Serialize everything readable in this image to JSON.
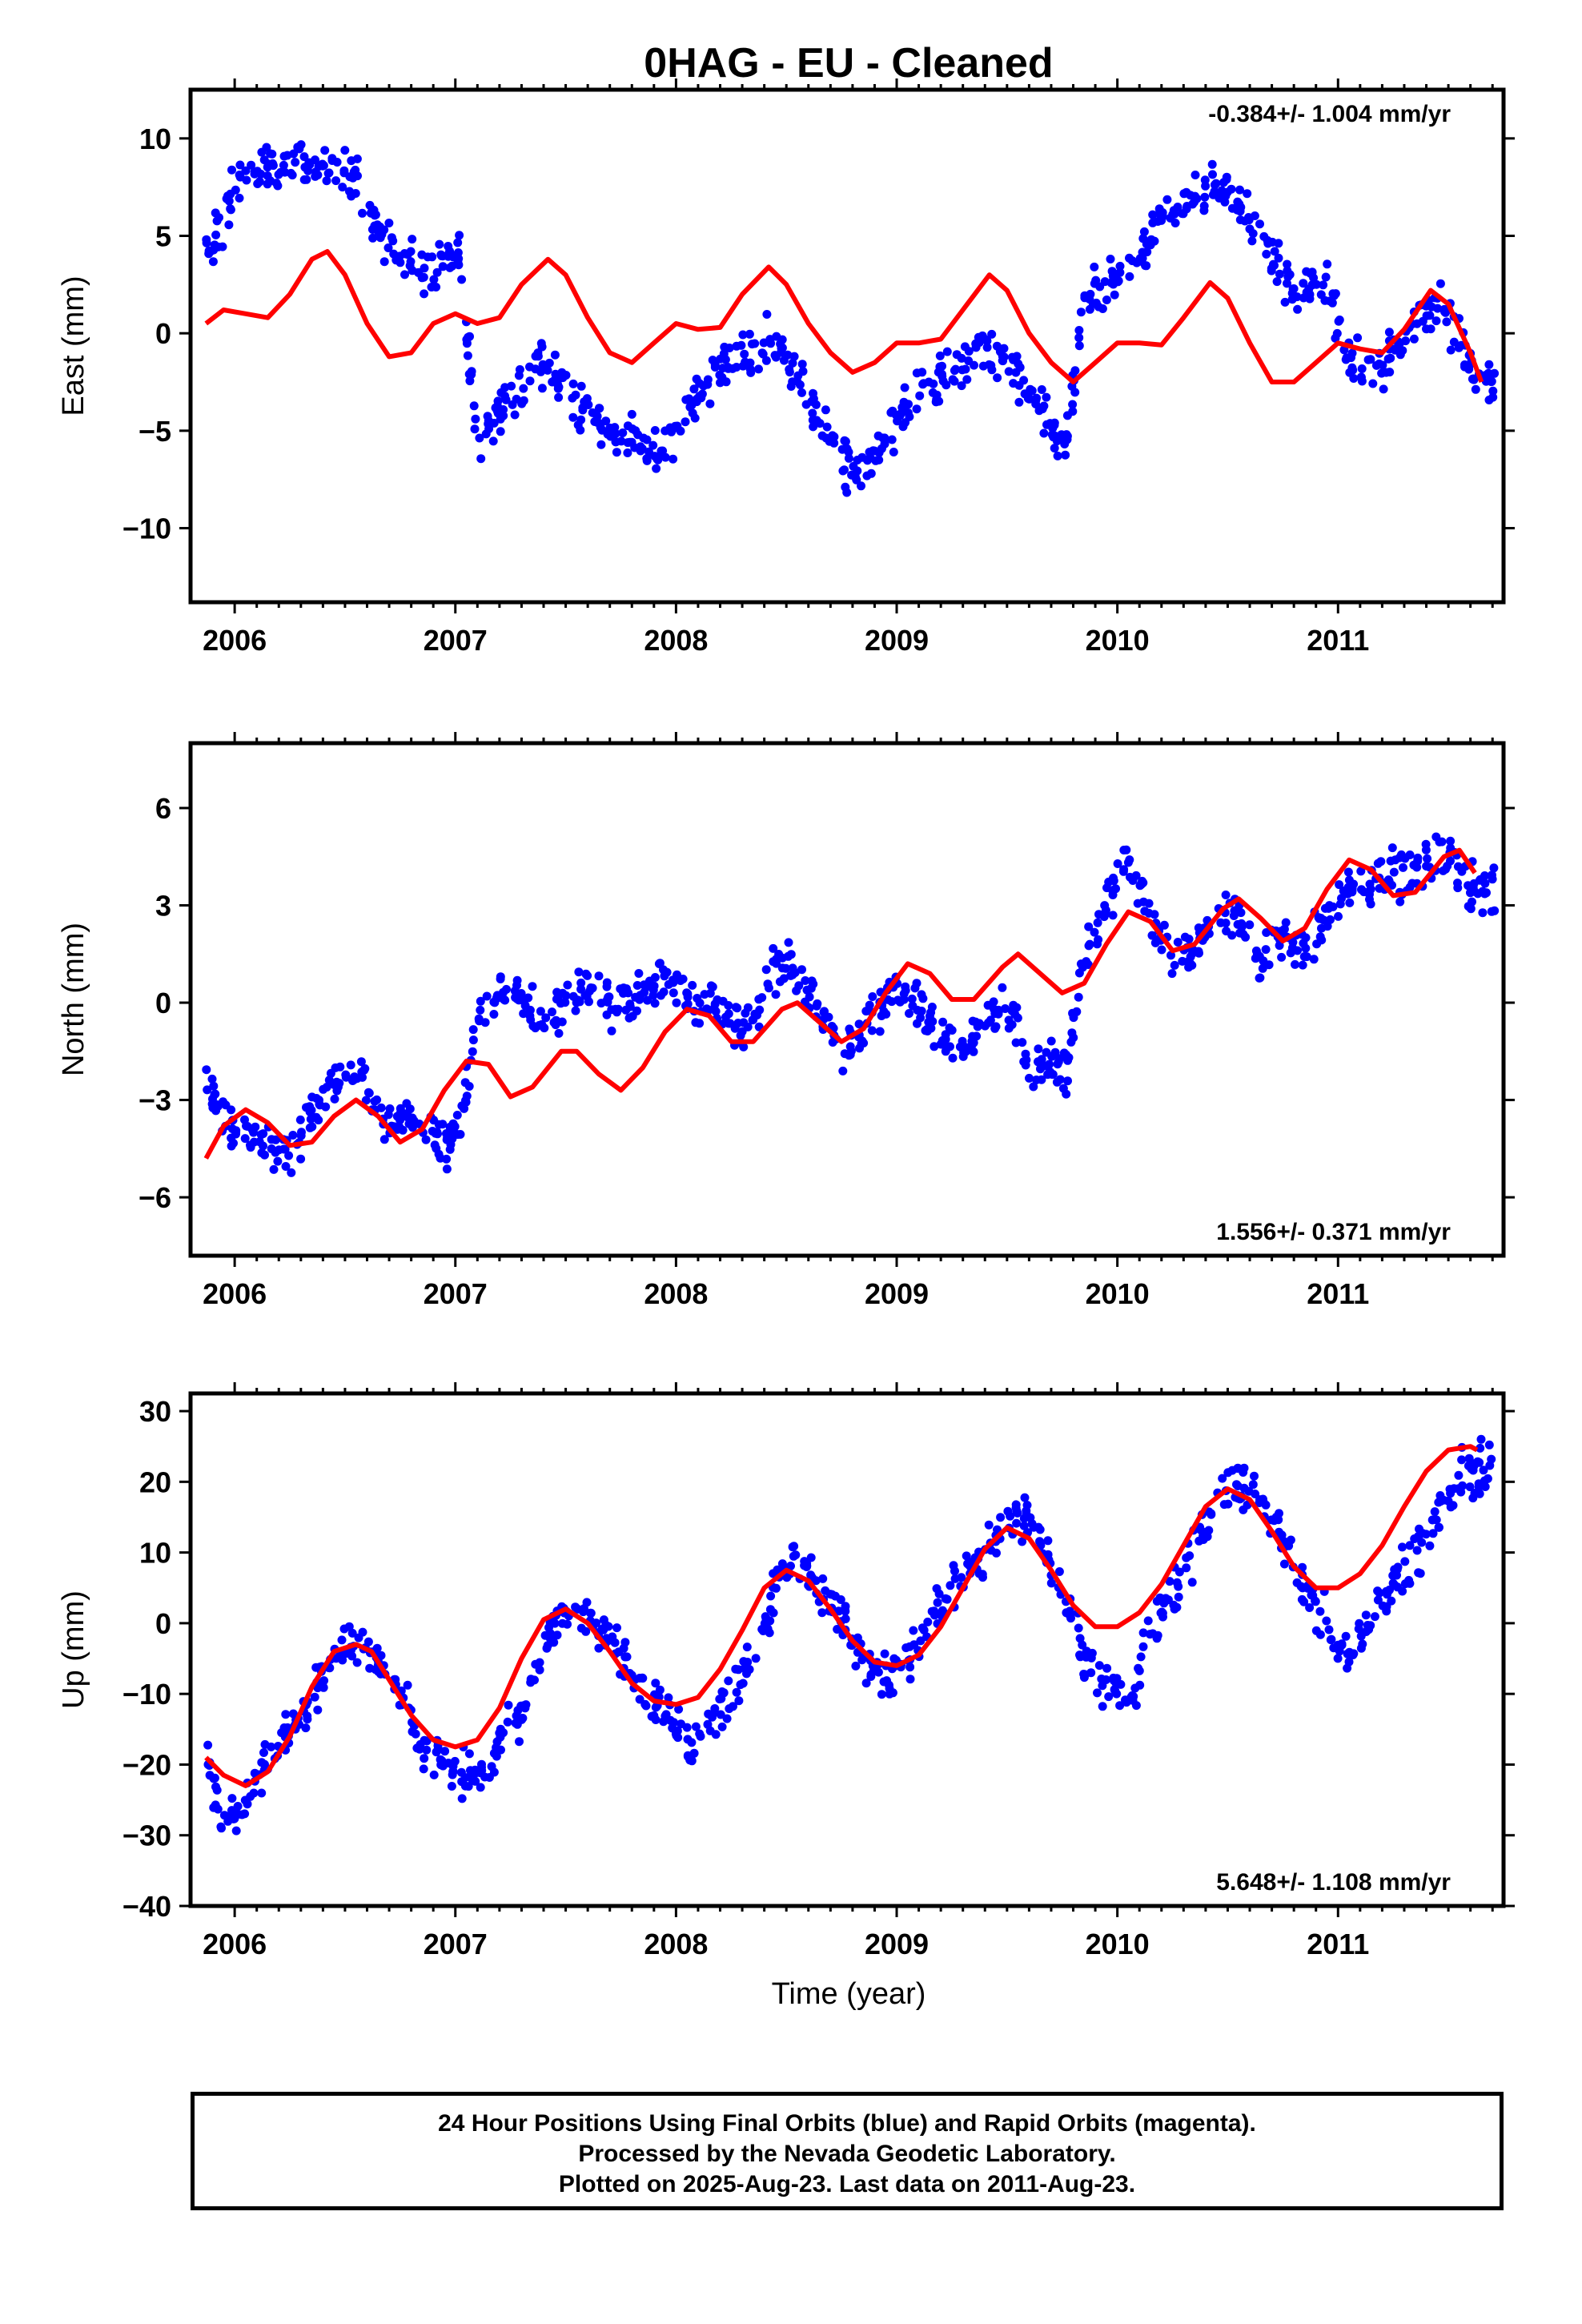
{
  "title": "0HAG  - EU - Cleaned",
  "x_axis_title": "Time (year)",
  "footer": {
    "line1": "24 Hour Positions Using Final Orbits (blue) and Rapid Orbits (magenta).",
    "line2": "Processed by the Nevada Geodetic Laboratory.",
    "line3": "Plotted on 2025-Aug-23. Last data on 2011-Aug-23."
  },
  "colors": {
    "data": "#0000ff",
    "model": "#ff0000",
    "frame": "#000000"
  },
  "chart_data": [
    {
      "type": "scatter",
      "ylabel": "East (mm)",
      "rate_text": "-0.384+/- 1.004 mm/yr",
      "xlim": [
        2005.8,
        2011.75
      ],
      "ylim": [
        -13.8,
        12.5
      ],
      "yticks": [
        -10,
        -5,
        0,
        5,
        10
      ],
      "xticks": [
        2006,
        2007,
        2008,
        2009,
        2010,
        2011
      ],
      "series": [
        {
          "name": "data",
          "x": [
            2005.87,
            2005.95,
            2006.05,
            2006.15,
            2006.25,
            2006.35,
            2006.45,
            2006.55,
            2006.65,
            2006.75,
            2006.85,
            2006.95,
            2007.02,
            2007.1,
            2007.2,
            2007.3,
            2007.4,
            2007.5,
            2007.6,
            2007.7,
            2007.8,
            2007.9,
            2008.0,
            2008.1,
            2008.2,
            2008.3,
            2008.4,
            2008.5,
            2008.6,
            2008.7,
            2008.8,
            2008.9,
            2009.0,
            2009.1,
            2009.2,
            2009.3,
            2009.4,
            2009.5,
            2009.6,
            2009.7,
            2009.77,
            2009.85,
            2009.95,
            2010.05,
            2010.15,
            2010.25,
            2010.35,
            2010.45,
            2010.55,
            2010.65,
            2010.75,
            2010.85,
            2010.95,
            2011.05,
            2011.15,
            2011.25,
            2011.35,
            2011.45,
            2011.55,
            2011.63
          ],
          "y": [
            4.0,
            6.0,
            8.0,
            8.5,
            9.0,
            8.5,
            8.5,
            7.5,
            5.5,
            4.0,
            3.0,
            4.0,
            4.0,
            -5.5,
            -4.0,
            -2.5,
            -1.5,
            -3.0,
            -4.0,
            -5.0,
            -5.5,
            -6.0,
            -5.0,
            -3.0,
            -2.0,
            -1.0,
            -0.5,
            -1.0,
            -3.0,
            -5.5,
            -7.0,
            -6.5,
            -4.5,
            -3.0,
            -2.5,
            -1.5,
            -0.5,
            -1.5,
            -3.0,
            -4.5,
            -5.5,
            2.0,
            2.5,
            3.5,
            5.0,
            6.0,
            7.0,
            7.5,
            6.5,
            5.0,
            3.0,
            2.5,
            2.5,
            -1.5,
            -2.0,
            -1.0,
            0.5,
            1.5,
            0.0,
            -2.5
          ]
        },
        {
          "name": "model",
          "x": [
            2005.87,
            2005.95,
            2006.05,
            2006.15,
            2006.25,
            2006.35,
            2006.42,
            2006.5,
            2006.6,
            2006.7,
            2006.8,
            2006.9,
            2007.0,
            2007.1,
            2007.2,
            2007.3,
            2007.42,
            2007.5,
            2007.6,
            2007.7,
            2007.8,
            2007.9,
            2008.0,
            2008.1,
            2008.2,
            2008.3,
            2008.42,
            2008.5,
            2008.6,
            2008.7,
            2008.8,
            2008.9,
            2009.0,
            2009.1,
            2009.2,
            2009.3,
            2009.42,
            2009.5,
            2009.6,
            2009.7,
            2009.8,
            2009.9,
            2010.0,
            2010.1,
            2010.2,
            2010.3,
            2010.42,
            2010.5,
            2010.6,
            2010.7,
            2010.8,
            2010.9,
            2011.0,
            2011.1,
            2011.2,
            2011.3,
            2011.42,
            2011.5,
            2011.6,
            2011.65
          ],
          "y": [
            0.5,
            1.2,
            1.0,
            0.8,
            2.0,
            3.8,
            4.2,
            3.0,
            0.5,
            -1.2,
            -1.0,
            0.5,
            1.0,
            0.5,
            0.8,
            2.5,
            3.8,
            3.0,
            0.8,
            -1.0,
            -1.5,
            -0.5,
            0.5,
            0.2,
            0.3,
            2.0,
            3.4,
            2.5,
            0.5,
            -1.0,
            -2.0,
            -1.5,
            -0.5,
            -0.5,
            -0.3,
            1.2,
            3.0,
            2.2,
            0.0,
            -1.5,
            -2.5,
            -1.5,
            -0.5,
            -0.5,
            -0.6,
            0.8,
            2.6,
            1.8,
            -0.5,
            -2.5,
            -2.5,
            -1.5,
            -0.5,
            -0.8,
            -1.0,
            0.2,
            2.2,
            1.5,
            -1.0,
            -2.5
          ]
        }
      ]
    },
    {
      "type": "scatter",
      "ylabel": "North (mm)",
      "rate_text": "1.556+/- 0.371 mm/yr",
      "xlim": [
        2005.8,
        2011.75
      ],
      "ylim": [
        -7.8,
        8.0
      ],
      "yticks": [
        -6,
        -3,
        0,
        3,
        6
      ],
      "xticks": [
        2006,
        2007,
        2008,
        2009,
        2010,
        2011
      ],
      "series": [
        {
          "name": "data",
          "x": [
            2005.87,
            2005.95,
            2006.05,
            2006.15,
            2006.25,
            2006.35,
            2006.45,
            2006.55,
            2006.65,
            2006.75,
            2006.85,
            2006.95,
            2007.02,
            2007.1,
            2007.2,
            2007.3,
            2007.4,
            2007.5,
            2007.6,
            2007.7,
            2007.8,
            2007.9,
            2008.0,
            2008.1,
            2008.2,
            2008.3,
            2008.4,
            2008.5,
            2008.6,
            2008.7,
            2008.8,
            2008.9,
            2009.0,
            2009.1,
            2009.2,
            2009.3,
            2009.4,
            2009.5,
            2009.6,
            2009.7,
            2009.77,
            2009.85,
            2009.95,
            2010.05,
            2010.15,
            2010.25,
            2010.35,
            2010.45,
            2010.55,
            2010.65,
            2010.75,
            2010.85,
            2010.95,
            2011.05,
            2011.15,
            2011.25,
            2011.35,
            2011.45,
            2011.55,
            2011.63
          ],
          "y": [
            -2.5,
            -3.5,
            -4.0,
            -4.5,
            -5.0,
            -3.5,
            -2.5,
            -2.0,
            -3.5,
            -3.5,
            -3.5,
            -4.5,
            -4.0,
            -0.5,
            0.5,
            0.0,
            -0.5,
            0.0,
            0.5,
            0.0,
            0.0,
            0.5,
            0.5,
            0.0,
            0.0,
            -1.0,
            0.5,
            1.5,
            0.5,
            -1.0,
            -1.5,
            -0.5,
            0.5,
            0.0,
            -1.0,
            -1.5,
            -0.5,
            0.0,
            -2.0,
            -2.0,
            -2.0,
            1.5,
            3.0,
            4.5,
            2.5,
            1.5,
            1.5,
            3.0,
            2.5,
            1.5,
            2.0,
            1.5,
            2.5,
            3.5,
            3.5,
            4.0,
            4.0,
            4.5,
            4.0,
            3.5
          ]
        },
        {
          "name": "model",
          "x": [
            2005.87,
            2005.95,
            2006.05,
            2006.15,
            2006.25,
            2006.35,
            2006.45,
            2006.55,
            2006.65,
            2006.75,
            2006.85,
            2006.95,
            2007.05,
            2007.15,
            2007.25,
            2007.35,
            2007.48,
            2007.55,
            2007.65,
            2007.75,
            2007.85,
            2007.95,
            2008.05,
            2008.15,
            2008.25,
            2008.35,
            2008.48,
            2008.55,
            2008.65,
            2008.75,
            2008.85,
            2008.95,
            2009.05,
            2009.15,
            2009.25,
            2009.35,
            2009.48,
            2009.55,
            2009.65,
            2009.75,
            2009.85,
            2009.95,
            2010.05,
            2010.15,
            2010.25,
            2010.35,
            2010.48,
            2010.55,
            2010.65,
            2010.75,
            2010.85,
            2010.95,
            2011.05,
            2011.15,
            2011.25,
            2011.35,
            2011.48,
            2011.55,
            2011.62
          ],
          "y": [
            -4.8,
            -3.8,
            -3.3,
            -3.7,
            -4.4,
            -4.3,
            -3.5,
            -3.0,
            -3.5,
            -4.3,
            -3.9,
            -2.7,
            -1.8,
            -1.9,
            -2.9,
            -2.6,
            -1.5,
            -1.5,
            -2.2,
            -2.7,
            -2.0,
            -0.9,
            -0.2,
            -0.4,
            -1.2,
            -1.2,
            -0.2,
            0.0,
            -0.6,
            -1.2,
            -0.8,
            0.3,
            1.2,
            0.9,
            0.1,
            0.1,
            1.1,
            1.5,
            0.9,
            0.3,
            0.6,
            1.8,
            2.8,
            2.5,
            1.6,
            1.8,
            2.9,
            3.2,
            2.6,
            1.9,
            2.3,
            3.5,
            4.4,
            4.1,
            3.3,
            3.4,
            4.5,
            4.7,
            4.0
          ]
        }
      ]
    },
    {
      "type": "scatter",
      "ylabel": "Up (mm)",
      "rate_text": "5.648+/- 1.108 mm/yr",
      "xlim": [
        2005.8,
        2011.75
      ],
      "ylim": [
        -40,
        32.5
      ],
      "yticks": [
        -40,
        -30,
        -20,
        -10,
        0,
        10,
        20,
        30
      ],
      "xticks": [
        2006,
        2007,
        2008,
        2009,
        2010,
        2011
      ],
      "series": [
        {
          "name": "data",
          "x": [
            2005.87,
            2005.95,
            2006.05,
            2006.15,
            2006.25,
            2006.35,
            2006.45,
            2006.55,
            2006.65,
            2006.75,
            2006.85,
            2006.95,
            2007.05,
            2007.15,
            2007.25,
            2007.35,
            2007.45,
            2007.55,
            2007.65,
            2007.75,
            2007.85,
            2007.95,
            2008.05,
            2008.15,
            2008.25,
            2008.35,
            2008.45,
            2008.55,
            2008.65,
            2008.75,
            2008.85,
            2008.95,
            2009.05,
            2009.15,
            2009.25,
            2009.35,
            2009.45,
            2009.55,
            2009.65,
            2009.75,
            2009.85,
            2009.95,
            2010.05,
            2010.15,
            2010.25,
            2010.35,
            2010.45,
            2010.55,
            2010.65,
            2010.75,
            2010.85,
            2010.95,
            2011.05,
            2011.15,
            2011.25,
            2011.35,
            2011.45,
            2011.55,
            2011.63
          ],
          "y": [
            -20,
            -28,
            -25,
            -20,
            -15,
            -10,
            -5,
            -2,
            -5,
            -10,
            -18,
            -20,
            -22,
            -20,
            -15,
            -8,
            0,
            2,
            0,
            -5,
            -10,
            -12,
            -18,
            -15,
            -10,
            -5,
            5,
            10,
            5,
            0,
            -5,
            -8,
            -5,
            0,
            5,
            8,
            12,
            15,
            12,
            5,
            -5,
            -8,
            -12,
            0,
            5,
            10,
            18,
            20,
            18,
            12,
            5,
            0,
            -5,
            0,
            5,
            10,
            15,
            20,
            22
          ]
        },
        {
          "name": "model",
          "x": [
            2005.87,
            2005.95,
            2006.05,
            2006.15,
            2006.25,
            2006.35,
            2006.45,
            2006.55,
            2006.62,
            2006.7,
            2006.8,
            2006.9,
            2007.0,
            2007.1,
            2007.2,
            2007.3,
            2007.4,
            2007.5,
            2007.6,
            2007.7,
            2007.8,
            2007.9,
            2008.0,
            2008.1,
            2008.2,
            2008.3,
            2008.4,
            2008.5,
            2008.6,
            2008.7,
            2008.8,
            2008.9,
            2009.0,
            2009.1,
            2009.2,
            2009.3,
            2009.4,
            2009.5,
            2009.6,
            2009.7,
            2009.8,
            2009.9,
            2010.0,
            2010.1,
            2010.2,
            2010.3,
            2010.4,
            2010.5,
            2010.6,
            2010.7,
            2010.8,
            2010.9,
            2011.0,
            2011.1,
            2011.2,
            2011.3,
            2011.4,
            2011.5,
            2011.6,
            2011.63
          ],
          "y": [
            -19,
            -21.5,
            -23,
            -21,
            -16,
            -9,
            -4,
            -3,
            -4,
            -8,
            -13,
            -16.5,
            -17.5,
            -16.5,
            -12,
            -5,
            0.5,
            2,
            0,
            -4,
            -8.5,
            -11,
            -11.5,
            -10.5,
            -6.5,
            -1,
            5,
            7.5,
            6,
            2,
            -2.5,
            -5.5,
            -6,
            -4.5,
            -0.5,
            5,
            10.5,
            13.5,
            12,
            7.5,
            2.5,
            -0.5,
            -0.5,
            1.5,
            5.5,
            11,
            16.5,
            19,
            17.5,
            13,
            8,
            5,
            5,
            7,
            11,
            16.5,
            21.5,
            24.5,
            25,
            24.5
          ]
        }
      ]
    }
  ]
}
